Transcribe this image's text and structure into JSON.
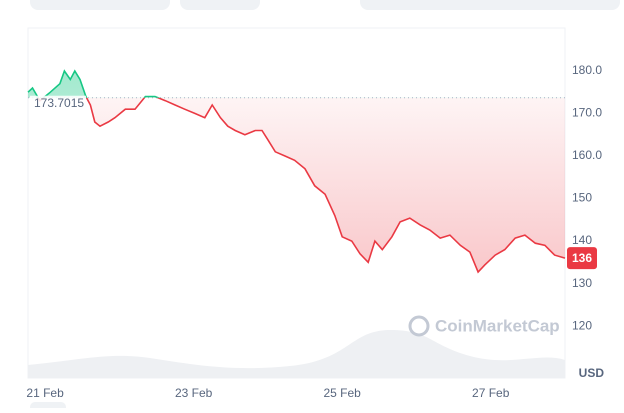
{
  "chart_data": {
    "type": "line",
    "x": [
      20.77,
      20.83,
      20.93,
      21.07,
      21.2,
      21.26,
      21.34,
      21.4,
      21.47,
      21.55,
      21.61,
      21.67,
      21.74,
      21.85,
      21.94,
      22.08,
      22.21,
      22.35,
      22.48,
      22.62,
      22.75,
      22.88,
      23.02,
      23.15,
      23.25,
      23.36,
      23.46,
      23.56,
      23.69,
      23.83,
      23.92,
      24.0,
      24.1,
      24.23,
      24.36,
      24.5,
      24.63,
      24.77,
      24.9,
      25.0,
      25.13,
      25.24,
      25.35,
      25.44,
      25.54,
      25.67,
      25.78,
      25.91,
      26.05,
      26.18,
      26.32,
      26.45,
      26.59,
      26.72,
      26.83,
      26.92,
      27.06,
      27.19,
      27.33,
      27.46,
      27.6,
      27.73,
      27.86,
      28.0
    ],
    "series": [
      {
        "values": [
          175,
          176,
          173,
          175,
          177,
          180,
          178,
          180,
          178,
          174,
          172,
          168,
          167,
          168,
          169,
          171,
          171,
          174,
          174,
          173,
          172,
          171,
          170,
          169,
          172,
          169,
          167,
          166,
          165,
          166,
          166,
          163.8,
          161,
          160,
          159,
          157,
          153,
          151,
          146,
          141,
          140,
          137,
          135,
          140,
          138,
          141,
          144.5,
          145.4,
          143.8,
          142.6,
          140.7,
          141.4,
          139,
          137.4,
          132.7,
          134.4,
          136.7,
          138,
          140.7,
          141.4,
          139.5,
          139,
          136.7,
          136
        ],
        "color": "#ea3943",
        "up_color": "#16c784"
      }
    ],
    "baseline": 173.7015,
    "current_price": 136,
    "xlim": [
      20.77,
      28.0
    ],
    "xticks": [
      {
        "value": 21,
        "label": "21 Feb"
      },
      {
        "value": 23,
        "label": "23 Feb"
      },
      {
        "value": 25,
        "label": "25 Feb"
      },
      {
        "value": 27,
        "label": "27 Feb"
      }
    ],
    "ylim": [
      107.8,
      190.1
    ],
    "yticks": [
      {
        "value": 180,
        "label": "180.0"
      },
      {
        "value": 170,
        "label": "170.0"
      },
      {
        "value": 160,
        "label": "160.0"
      },
      150,
      140,
      130,
      120
    ],
    "y_unit": "USD",
    "watermark": "CoinMarketCap",
    "grid": false
  }
}
